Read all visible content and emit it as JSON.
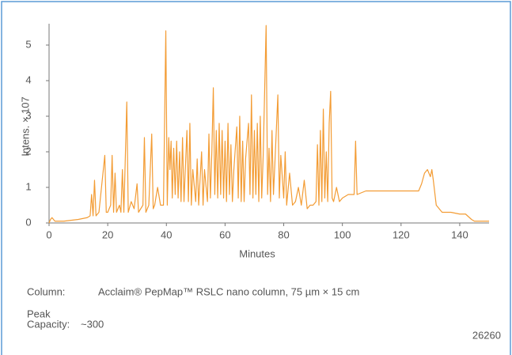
{
  "chart_data": {
    "type": "line",
    "y_label": "Intens. × 107",
    "x_label": "Minutes",
    "color": "#f39c34",
    "xlim": [
      0,
      150
    ],
    "ylim": [
      0,
      5.6
    ],
    "xticks": [
      0,
      20,
      40,
      60,
      80,
      100,
      120,
      140
    ],
    "yticks": [
      0,
      1,
      2,
      3,
      4,
      5
    ],
    "x": [
      0,
      0.5,
      1,
      2,
      5,
      10,
      13,
      14,
      14.5,
      15,
      15.5,
      16,
      17,
      18.5,
      19,
      19.5,
      20,
      21,
      21.5,
      22,
      22.5,
      23,
      24,
      24.5,
      25,
      25.5,
      26.5,
      27,
      28,
      29,
      30,
      30.5,
      32,
      32.5,
      33,
      34,
      35,
      35.5,
      36,
      37,
      38,
      39,
      39.8,
      40.3,
      40.8,
      41.2,
      41.6,
      42,
      42.5,
      43,
      43.5,
      44,
      44.5,
      45,
      45.5,
      46,
      46.5,
      47,
      47.5,
      48,
      48.5,
      49,
      50,
      50.5,
      51,
      52,
      52.5,
      53,
      54,
      54.5,
      55,
      55.5,
      56,
      56.5,
      57,
      57.5,
      58,
      58.5,
      59,
      59.5,
      60,
      60.5,
      61,
      61.5,
      62,
      62.5,
      63,
      64,
      64.5,
      65,
      65.5,
      66,
      66.5,
      67,
      68,
      68.5,
      69,
      69.5,
      70,
      70.5,
      71,
      71.5,
      72,
      72.5,
      73,
      74,
      74.5,
      75,
      75.5,
      76,
      76.5,
      77,
      78,
      78.5,
      79,
      80,
      80.5,
      81,
      82,
      83,
      84,
      85,
      86,
      87,
      88,
      89,
      90,
      91,
      91.5,
      92,
      92.5,
      93,
      93.5,
      94,
      94.5,
      95,
      95.5,
      96,
      96.5,
      97,
      98,
      99,
      100,
      102,
      104,
      104.5,
      105,
      108,
      112,
      116,
      120,
      124,
      126,
      127,
      128,
      129,
      130,
      130.5,
      131,
      132,
      134,
      137,
      140,
      142,
      144,
      145,
      150
    ],
    "values": [
      0,
      0.1,
      0.15,
      0.05,
      0.05,
      0.1,
      0.15,
      0.2,
      0.8,
      0.2,
      1.2,
      0.2,
      0.3,
      1.5,
      1.9,
      0.3,
      0.3,
      0.5,
      1.9,
      0.3,
      1.4,
      0.3,
      0.5,
      0.3,
      1.5,
      0.3,
      3.4,
      0.3,
      0.6,
      0.4,
      1.1,
      0.3,
      0.5,
      2.4,
      0.3,
      0.5,
      2.5,
      0.4,
      0.5,
      1.0,
      0.5,
      0.5,
      5.4,
      0.5,
      2.4,
      1.5,
      2.3,
      0.7,
      2.1,
      0.8,
      2.3,
      0.7,
      2.0,
      0.6,
      2.4,
      0.6,
      1.6,
      2.6,
      0.6,
      2.8,
      0.5,
      1.5,
      0.6,
      1.8,
      0.5,
      2.0,
      0.5,
      1.5,
      0.6,
      2.5,
      0.7,
      2.0,
      3.8,
      0.8,
      2.6,
      0.7,
      2.8,
      0.8,
      2.6,
      0.7,
      2.3,
      0.6,
      2.8,
      0.8,
      2.2,
      0.6,
      1.5,
      2.7,
      0.7,
      3.0,
      0.6,
      2.3,
      0.6,
      1.8,
      2.8,
      0.8,
      3.6,
      0.7,
      2.6,
      0.8,
      2.8,
      0.6,
      3.0,
      0.7,
      1.9,
      5.55,
      0.8,
      2.1,
      0.6,
      2.6,
      0.8,
      1.7,
      3.6,
      0.7,
      1.9,
      0.7,
      2.0,
      0.5,
      1.4,
      0.5,
      0.6,
      1.0,
      0.5,
      1.2,
      0.4,
      0.5,
      0.5,
      0.6,
      2.2,
      0.5,
      2.6,
      0.6,
      3.2,
      0.7,
      2.0,
      0.6,
      2.8,
      3.7,
      0.7,
      0.6,
      1.0,
      0.6,
      0.7,
      0.8,
      0.8,
      2.3,
      0.8,
      0.9,
      0.9,
      0.9,
      0.9,
      0.9,
      0.9,
      1.1,
      1.4,
      1.5,
      1.3,
      1.5,
      1.2,
      0.5,
      0.3,
      0.3,
      0.25,
      0.25,
      0.1,
      0.05,
      0.05
    ],
    "annotations": {
      "column_label": "Column:",
      "column_text": "Acclaim® PepMap™ RSLC nano column, 75 µm × 15 cm",
      "peak_label_line1": "Peak",
      "peak_label_line2": "Capacity:",
      "peak_capacity": "~300",
      "figure_number": "26260"
    }
  }
}
